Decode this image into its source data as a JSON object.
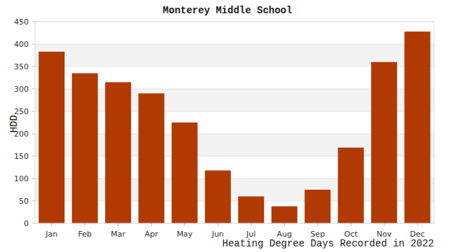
{
  "chart_data": {
    "type": "bar",
    "title": "Monterey Middle School",
    "x_label": "Heating Degree Days Recorded in 2022",
    "y_label": "HDD",
    "categories": [
      "Jan",
      "Feb",
      "Mar",
      "Apr",
      "May",
      "Jun",
      "Jul",
      "Aug",
      "Sep",
      "Oct",
      "Nov",
      "Dec"
    ],
    "values": [
      383,
      335,
      315,
      290,
      225,
      118,
      60,
      38,
      75,
      169,
      360,
      428
    ],
    "color": "#b03a02",
    "ylim": [
      0,
      450
    ],
    "yticks": [
      0,
      50,
      100,
      150,
      200,
      250,
      300,
      350,
      400,
      450
    ],
    "grid": true
  }
}
